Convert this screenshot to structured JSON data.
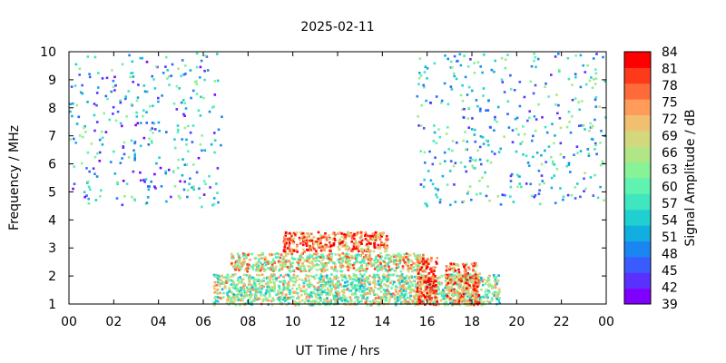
{
  "chart_data": {
    "type": "heatmap",
    "title": "2025-02-11",
    "xlabel": "UT Time / hrs",
    "ylabel": "Frequency / MHz",
    "colorbar_label": "Signal Amplitude / dB",
    "xlim": [
      0,
      24
    ],
    "ylim": [
      1,
      10
    ],
    "x_ticks": [
      "00",
      "02",
      "04",
      "06",
      "08",
      "10",
      "12",
      "14",
      "16",
      "18",
      "20",
      "22",
      "00"
    ],
    "y_ticks": [
      "1",
      "2",
      "3",
      "4",
      "5",
      "6",
      "7",
      "8",
      "9",
      "10"
    ],
    "colorbar_ticks": [
      "39",
      "42",
      "45",
      "48",
      "51",
      "54",
      "57",
      "60",
      "63",
      "66",
      "69",
      "72",
      "75",
      "78",
      "81",
      "84"
    ],
    "colorbar_range": [
      39,
      84
    ],
    "colors": [
      "#8000ff",
      "#5a30ff",
      "#3a5cff",
      "#1a86f2",
      "#12aee0",
      "#20d0d0",
      "#40e6c0",
      "#60f2b0",
      "#88f296",
      "#b0e686",
      "#d4d87c",
      "#f0c070",
      "#ff9c5a",
      "#ff6a3a",
      "#ff3a1a",
      "#ff0000"
    ],
    "regions": [
      {
        "name": "daytime-band-1.5-2.1",
        "x": [
          6.4,
          19.2
        ],
        "y": [
          1.0,
          2.1
        ],
        "level": 0.55
      },
      {
        "name": "daytime-band-2.2-2.8",
        "x": [
          7.2,
          15.9
        ],
        "y": [
          2.2,
          2.85
        ],
        "level": 0.65
      },
      {
        "name": "daytime-band-3.0-3.6",
        "x": [
          9.5,
          14.2
        ],
        "y": [
          2.9,
          3.6
        ],
        "level": 0.85
      },
      {
        "name": "afternoon-patch-16h",
        "x": [
          15.5,
          16.4
        ],
        "y": [
          1.0,
          2.7
        ],
        "level": 0.9
      },
      {
        "name": "afternoon-patch-18h",
        "x": [
          16.8,
          18.3
        ],
        "y": [
          1.0,
          2.5
        ],
        "level": 0.8
      },
      {
        "name": "night-noise-top-left",
        "x": [
          0,
          6.8
        ],
        "y": [
          4.5,
          10.0
        ],
        "level": 0.3
      },
      {
        "name": "night-noise-top-right",
        "x": [
          15.5,
          24
        ],
        "y": [
          4.5,
          10.0
        ],
        "level": 0.35
      }
    ]
  }
}
